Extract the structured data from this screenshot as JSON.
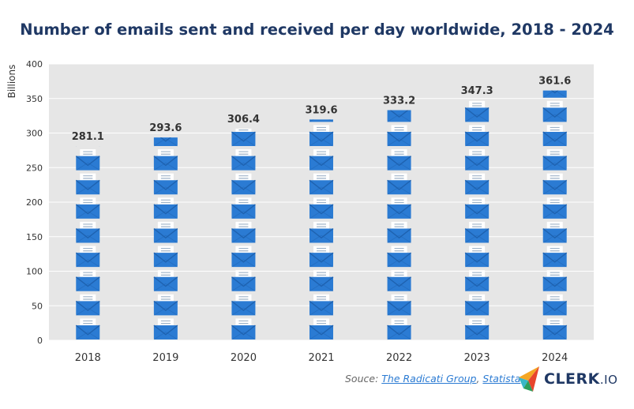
{
  "colors": {
    "title": "#1f3864",
    "plot_bg": "#e6e6e6",
    "envelope": "#2b7bd3",
    "envelope_dark": "#1e62b0",
    "letter": "#ffffff",
    "letter_lines": "#9fb3c8",
    "source_link": "#2b7bd3"
  },
  "chart_data": {
    "type": "bar",
    "title": "Number of emails sent and received per day worldwide, 2018 - 2024",
    "ylabel": "Billions",
    "xlabel": "",
    "categories": [
      "2018",
      "2019",
      "2020",
      "2021",
      "2022",
      "2023",
      "2024"
    ],
    "values": [
      281.1,
      293.6,
      306.4,
      319.6,
      333.2,
      347.3,
      361.6
    ],
    "data_labels": [
      "281.1",
      "293.6",
      "306.4",
      "319.6",
      "333.2",
      "347.3",
      "361.6"
    ],
    "ylim": [
      0,
      400
    ],
    "yticks": [
      0,
      50,
      100,
      150,
      200,
      250,
      300,
      350,
      400
    ],
    "grid": true,
    "legend": "none",
    "mark_style": "stacked-envelope-icons"
  },
  "source": {
    "prefix": "Souce: ",
    "link1": "The Radicati Group",
    "separator": ", ",
    "link2": "Statista"
  },
  "logo": {
    "name": "CLERK",
    "suffix": ".IO",
    "icon": "clerk-arrow-logo-icon"
  }
}
